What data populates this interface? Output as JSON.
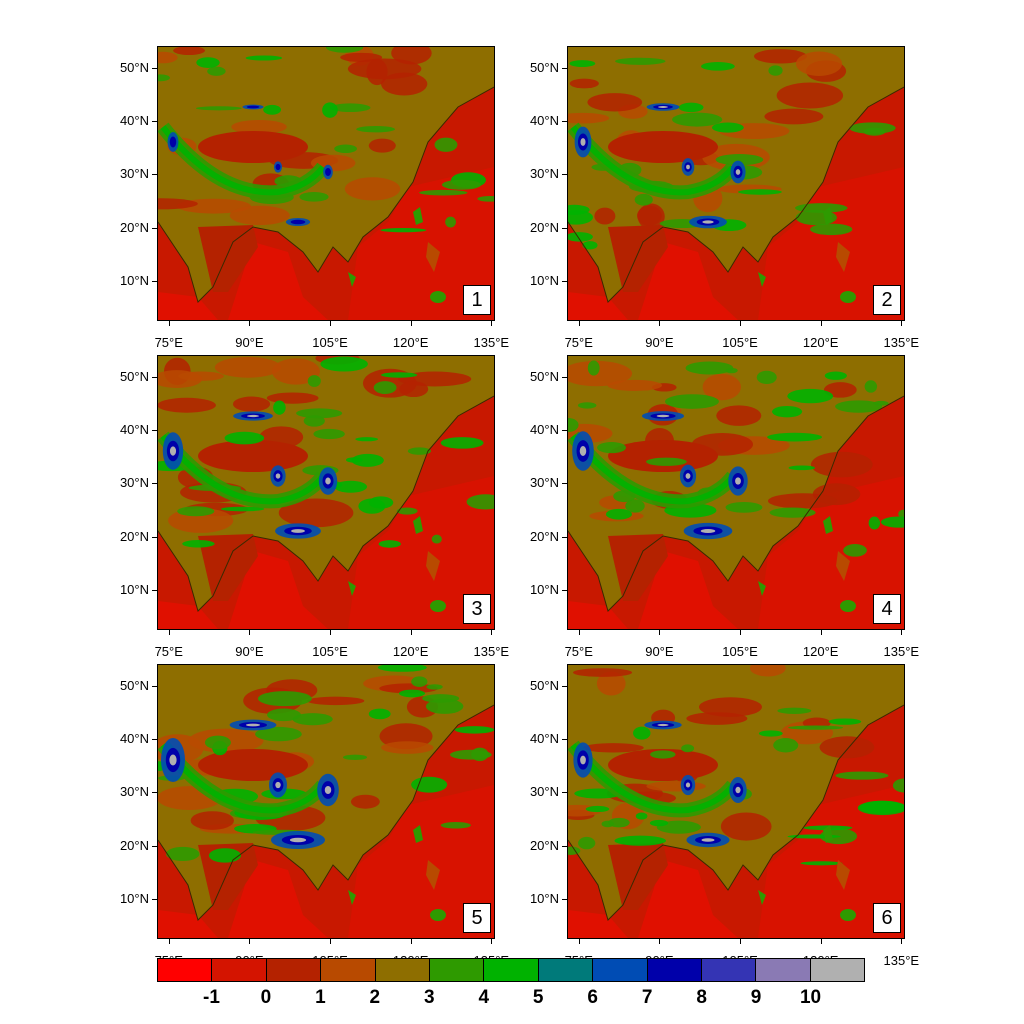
{
  "axes": {
    "lat_labels": [
      "50°N",
      "40°N",
      "30°N",
      "20°N",
      "10°N"
    ],
    "lon_labels": [
      "75°E",
      "90°E",
      "105°E",
      "120°E",
      "135°E"
    ]
  },
  "panels": [
    {
      "number": "1",
      "intensity": 0.45
    },
    {
      "number": "2",
      "intensity": 0.7
    },
    {
      "number": "3",
      "intensity": 0.85
    },
    {
      "number": "4",
      "intensity": 0.9
    },
    {
      "number": "5",
      "intensity": 1.0
    },
    {
      "number": "6",
      "intensity": 0.8
    }
  ],
  "colorbar": {
    "labels": [
      "-1",
      "0",
      "1",
      "2",
      "3",
      "4",
      "5",
      "6",
      "7",
      "8",
      "9",
      "10"
    ],
    "colors": [
      "#ff0000",
      "#d41400",
      "#b42200",
      "#b84a00",
      "#8e6e00",
      "#2e9a00",
      "#00b200",
      "#007a7a",
      "#004cb4",
      "#0000aa",
      "#3434b4",
      "#8a7ab4",
      "#b0b0b0"
    ]
  }
}
